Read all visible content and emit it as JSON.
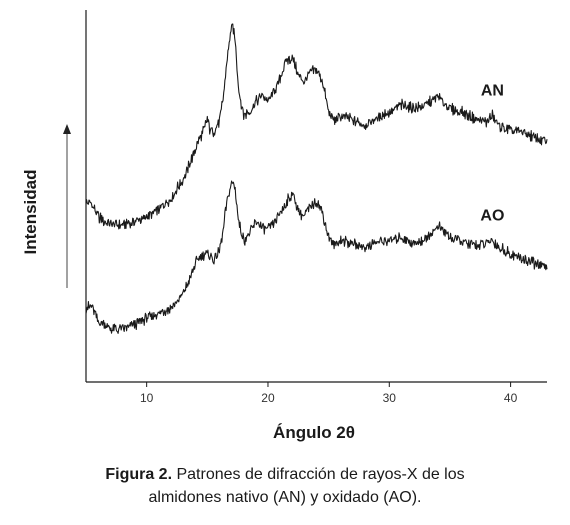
{
  "chart_data": {
    "type": "line",
    "title": "",
    "xlabel": "Ángulo 2θ",
    "ylabel": "Intensidad",
    "xlim": [
      5,
      43
    ],
    "ylim": [
      0,
      100
    ],
    "xticks": [
      10,
      20,
      30,
      40
    ],
    "x_tick_labels": [
      "10",
      "20",
      "30",
      "40"
    ],
    "grid": false,
    "legend": "none",
    "y_arrow": true,
    "series": [
      {
        "name": "AN",
        "color": "#1a1a1a",
        "x": [
          5.0,
          5.5,
          6.0,
          6.5,
          7.0,
          7.5,
          8.0,
          9.0,
          10.0,
          11.0,
          12.0,
          13.0,
          13.5,
          14.0,
          14.5,
          14.8,
          15.0,
          15.2,
          15.5,
          16.0,
          16.3,
          16.6,
          16.9,
          17.1,
          17.3,
          17.6,
          18.0,
          18.5,
          19.0,
          19.5,
          20.0,
          20.5,
          21.0,
          21.5,
          22.0,
          22.3,
          22.6,
          23.0,
          23.5,
          24.0,
          24.5,
          25.0,
          25.5,
          26.0,
          27.0,
          28.0,
          29.0,
          30.0,
          31.0,
          32.0,
          33.0,
          34.0,
          34.4,
          35.0,
          36.0,
          37.0,
          38.0,
          38.5,
          39.0,
          40.0,
          41.0,
          42.0,
          43.0
        ],
        "y": [
          47,
          46.5,
          43,
          41.5,
          41,
          40.5,
          40.5,
          41.5,
          43,
          45,
          48.5,
          54,
          58,
          63,
          67,
          69.5,
          72,
          69,
          68,
          71,
          78,
          88,
          97.5,
          99,
          95,
          80,
          73,
          74,
          77,
          79,
          77,
          80,
          84,
          89,
          90,
          87,
          84,
          83,
          85.5,
          86.5,
          83,
          74,
          71,
          73,
          71.5,
          70,
          72,
          74,
          76,
          75,
          76,
          78.5,
          77,
          75,
          74,
          72,
          71,
          73,
          70,
          68.5,
          68,
          66.5,
          65
        ]
      },
      {
        "name": "AO",
        "color": "#1a1a1a",
        "x": [
          5.0,
          5.5,
          6.0,
          6.5,
          7.0,
          7.5,
          8.0,
          9.0,
          10.0,
          11.0,
          12.0,
          13.0,
          13.5,
          14.0,
          14.5,
          15.0,
          15.5,
          16.0,
          16.3,
          16.6,
          16.9,
          17.1,
          17.3,
          17.6,
          18.0,
          18.5,
          19.0,
          19.5,
          20.0,
          20.5,
          21.0,
          21.5,
          22.0,
          22.3,
          22.6,
          23.0,
          23.5,
          24.0,
          24.5,
          25.0,
          25.5,
          26.0,
          27.0,
          28.0,
          29.0,
          30.0,
          31.0,
          32.0,
          33.0,
          34.0,
          34.4,
          35.0,
          36.0,
          37.0,
          38.0,
          38.5,
          39.0,
          40.0,
          41.0,
          42.0,
          43.0
        ],
        "y": [
          16,
          16.5,
          12,
          11,
          10,
          9.5,
          10,
          11,
          13,
          14.5,
          16,
          20,
          24,
          29,
          31.5,
          32,
          30,
          33,
          39,
          47,
          52,
          53,
          51,
          41,
          36,
          38,
          41.5,
          40,
          39,
          41,
          44,
          47,
          50,
          47,
          44,
          43.5,
          46,
          48,
          44,
          37,
          34.5,
          36,
          35,
          34,
          35.5,
          36,
          37,
          35,
          36.5,
          40,
          39,
          37,
          35.5,
          34.5,
          35,
          36,
          34,
          32,
          30.5,
          29,
          28
        ]
      }
    ]
  },
  "caption": {
    "lead": "Figura 2.",
    "line1": " Patrones de difracción de rayos-X de los",
    "line2": "almidones nativo (AN) y oxidado (AO)."
  }
}
